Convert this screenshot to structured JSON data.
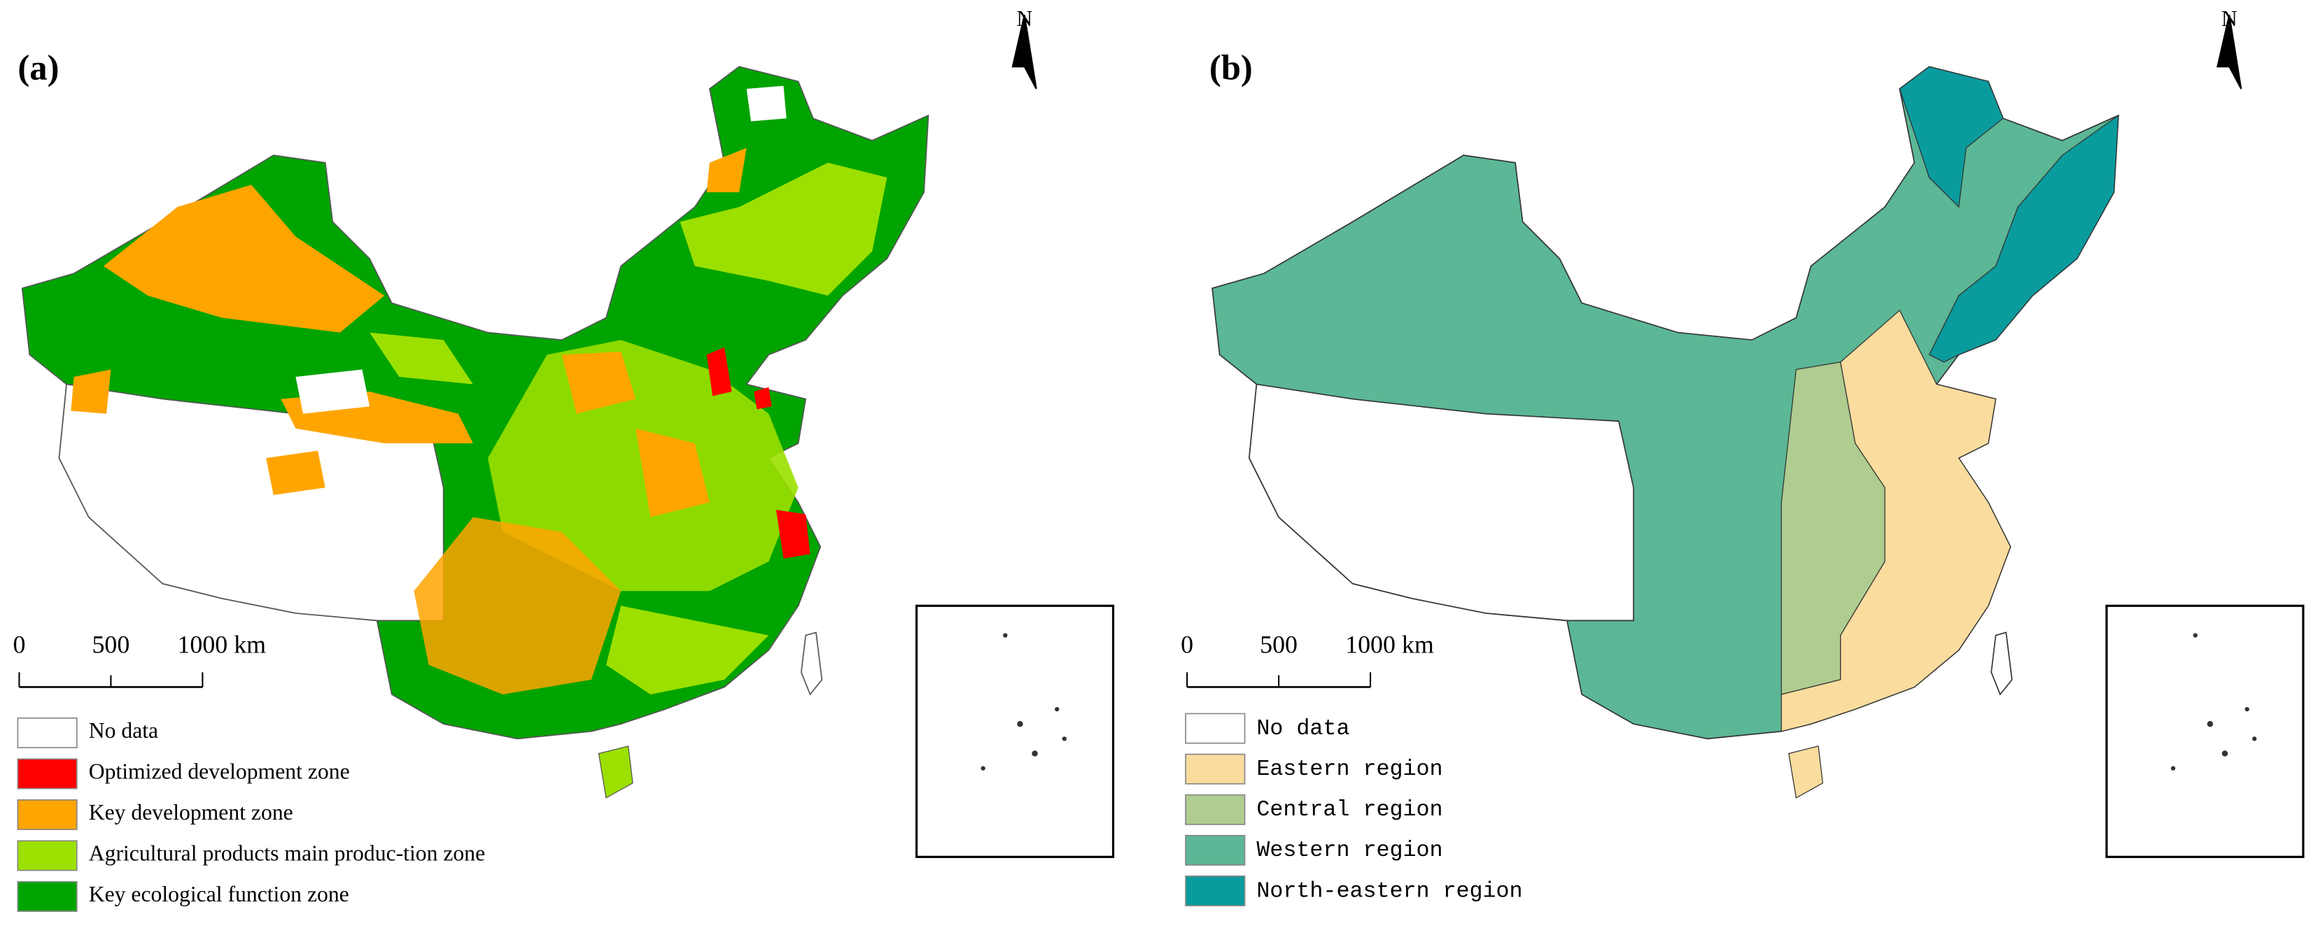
{
  "panels": [
    {
      "label": "(a)",
      "north": "N",
      "scale_bar": [
        "0",
        "500",
        "1000 km"
      ],
      "legend": [
        {
          "label": "No data",
          "color": "#ffffff"
        },
        {
          "label": "Optimized development zone",
          "color": "#ff0000"
        },
        {
          "label": "Key development zone",
          "color": "#ffa500"
        },
        {
          "label": "Agricultural products main produc-tion zone",
          "color": "#9be000"
        },
        {
          "label": "Key ecological function zone",
          "color": "#00a400"
        }
      ]
    },
    {
      "label": "(b)",
      "north": "N",
      "scale_bar": [
        "0",
        "500",
        "1000 km"
      ],
      "legend": [
        {
          "label": "No data",
          "color": "#ffffff"
        },
        {
          "label": "Eastern region",
          "color": "#fadc9e"
        },
        {
          "label": "Central region",
          "color": "#afcd90"
        },
        {
          "label": "Western region",
          "color": "#5bb795"
        },
        {
          "label": "North-eastern region",
          "color": "#0a9b9d"
        }
      ]
    }
  ]
}
